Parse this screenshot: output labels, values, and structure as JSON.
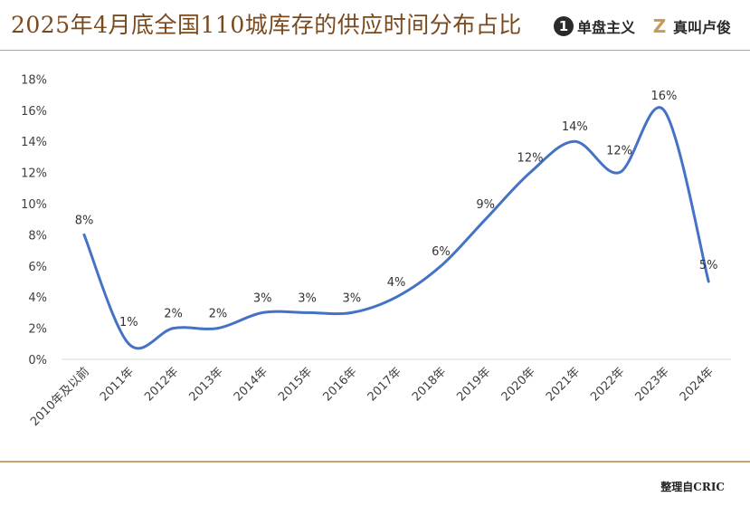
{
  "header": {
    "title": "2025年4月底全国110城库存的供应时间分布占比",
    "logos": [
      {
        "mark": "1",
        "text": "单盘主义"
      },
      {
        "mark": "Z",
        "text": "真叫卢俊"
      }
    ]
  },
  "footer": {
    "source": "整理自CRIC"
  },
  "colors": {
    "line": "#4472c4",
    "accent": "#c9a36a",
    "title": "#7a4a1e"
  },
  "chart_data": {
    "type": "line",
    "smooth": true,
    "categories": [
      "2010年及以前",
      "2011年",
      "2012年",
      "2013年",
      "2014年",
      "2015年",
      "2016年",
      "2017年",
      "2018年",
      "2019年",
      "2020年",
      "2021年",
      "2022年",
      "2023年",
      "2024年"
    ],
    "series": [
      {
        "values": [
          8,
          1,
          2,
          2,
          3,
          3,
          3,
          4,
          6,
          9,
          12,
          14,
          12,
          16,
          5
        ]
      }
    ],
    "data_labels": [
      "8%",
      "1%",
      "2%",
      "2%",
      "3%",
      "3%",
      "3%",
      "4%",
      "6%",
      "9%",
      "12%",
      "14%",
      "12%",
      "16%",
      "5%"
    ],
    "ylim": [
      0,
      18
    ],
    "yticks": [
      "0%",
      "2%",
      "4%",
      "6%",
      "8%",
      "10%",
      "12%",
      "14%",
      "16%",
      "18%"
    ],
    "grid": false,
    "legend": "none"
  }
}
